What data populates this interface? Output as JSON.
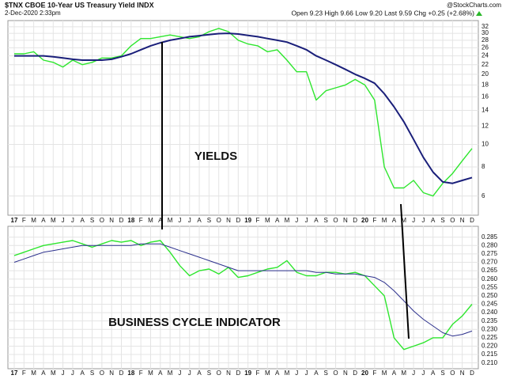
{
  "chart_data": [
    {
      "type": "line",
      "title": "$TNX CBOE 10-Year US Treasury Yield INDX",
      "subtitle": "2-Dec-2020 2:33pm",
      "quote": "Open 9.23 High 9.66 Low 9.20 Last 9.59 Chg +0.25 (+2.68%)",
      "source": "@StockCharts.com",
      "annotations": [
        "YIELDS"
      ],
      "log_scale": true,
      "grid": true,
      "categories": [
        "17",
        "F",
        "M",
        "A",
        "M",
        "J",
        "J",
        "A",
        "S",
        "O",
        "N",
        "D",
        "18",
        "F",
        "M",
        "A",
        "M",
        "J",
        "J",
        "A",
        "S",
        "O",
        "N",
        "D",
        "19",
        "F",
        "M",
        "A",
        "M",
        "J",
        "J",
        "A",
        "S",
        "O",
        "N",
        "D",
        "20",
        "F",
        "M",
        "A",
        "M",
        "J",
        "J",
        "A",
        "S",
        "O",
        "N",
        "D"
      ],
      "series": [
        {
          "color": "#2ee62e",
          "values": [
            24.5,
            24.5,
            25,
            23,
            22.5,
            21.5,
            23,
            22,
            22.5,
            23.5,
            23.5,
            24,
            26.5,
            28.5,
            28.5,
            29,
            29.5,
            29,
            28.5,
            29,
            30.5,
            31.5,
            30.5,
            28,
            27,
            26.5,
            25,
            25.5,
            23,
            20.5,
            20.5,
            15.5,
            17,
            17.5,
            18,
            19,
            18,
            15.5,
            8,
            6.5,
            6.5,
            7,
            6.2,
            6,
            6.8,
            7.5,
            8.5,
            9.6
          ]
        },
        {
          "color": "#1a1f7a",
          "values": [
            24,
            24,
            24,
            24,
            23.8,
            23.5,
            23.2,
            23,
            23,
            23,
            23.2,
            23.8,
            24.5,
            25.5,
            26.5,
            27.3,
            28,
            28.5,
            29,
            29.3,
            29.6,
            29.9,
            30,
            29.8,
            29.4,
            29,
            28.5,
            28,
            27.5,
            26.5,
            25.5,
            24,
            23,
            22,
            21,
            20,
            19.2,
            18.3,
            16.5,
            14.5,
            12.5,
            10.5,
            8.8,
            7.6,
            6.9,
            6.8,
            7,
            7.2
          ]
        }
      ],
      "ylim": [
        5,
        33.5
      ],
      "yticks": [
        6,
        8,
        10,
        12,
        14,
        16,
        18,
        20,
        22,
        24,
        26,
        28,
        30,
        32
      ]
    },
    {
      "type": "line",
      "annotations": [
        "BUSINESS CYCLE INDICATOR"
      ],
      "log_scale": false,
      "grid": true,
      "categories": [
        "17",
        "F",
        "M",
        "A",
        "M",
        "J",
        "J",
        "A",
        "S",
        "O",
        "N",
        "D",
        "18",
        "F",
        "M",
        "A",
        "M",
        "J",
        "J",
        "A",
        "S",
        "O",
        "N",
        "D",
        "19",
        "F",
        "M",
        "A",
        "M",
        "J",
        "J",
        "A",
        "S",
        "O",
        "N",
        "D",
        "20",
        "F",
        "M",
        "A",
        "M",
        "J",
        "J",
        "A",
        "S",
        "O",
        "N",
        "D"
      ],
      "series": [
        {
          "color": "#2ee62e",
          "values": [
            0.274,
            0.276,
            0.278,
            0.28,
            0.281,
            0.282,
            0.283,
            0.281,
            0.279,
            0.281,
            0.283,
            0.282,
            0.283,
            0.28,
            0.282,
            0.283,
            0.276,
            0.268,
            0.262,
            0.265,
            0.266,
            0.263,
            0.267,
            0.261,
            0.262,
            0.264,
            0.266,
            0.267,
            0.271,
            0.264,
            0.262,
            0.262,
            0.264,
            0.264,
            0.263,
            0.264,
            0.262,
            0.256,
            0.25,
            0.225,
            0.218,
            0.22,
            0.222,
            0.225,
            0.225,
            0.233,
            0.238,
            0.245
          ]
        },
        {
          "color": "#2b2f8c",
          "values": [
            0.27,
            0.272,
            0.274,
            0.276,
            0.277,
            0.278,
            0.279,
            0.28,
            0.28,
            0.28,
            0.28,
            0.28,
            0.28,
            0.281,
            0.281,
            0.281,
            0.279,
            0.277,
            0.275,
            0.273,
            0.271,
            0.269,
            0.267,
            0.265,
            0.265,
            0.265,
            0.265,
            0.265,
            0.265,
            0.265,
            0.265,
            0.264,
            0.264,
            0.263,
            0.263,
            0.263,
            0.262,
            0.261,
            0.258,
            0.253,
            0.247,
            0.241,
            0.236,
            0.232,
            0.228,
            0.226,
            0.227,
            0.229
          ]
        }
      ],
      "ylim": [
        0.207,
        0.291
      ],
      "yticks": [
        {
          "value": 0.21,
          "label": "0.210"
        },
        {
          "value": 0.215,
          "label": "0.215"
        },
        {
          "value": 0.22,
          "label": "0.220"
        },
        {
          "value": 0.225,
          "label": "0.225"
        },
        {
          "value": 0.23,
          "label": "0.230"
        },
        {
          "value": 0.235,
          "label": "0.235"
        },
        {
          "value": 0.24,
          "label": "0.240"
        },
        {
          "value": 0.245,
          "label": "0.245"
        },
        {
          "value": 0.25,
          "label": "0.250"
        },
        {
          "value": 0.255,
          "label": "0.255"
        },
        {
          "value": 0.26,
          "label": "0.260"
        },
        {
          "value": 0.265,
          "label": "0.265"
        },
        {
          "value": 0.27,
          "label": "0.270"
        },
        {
          "value": 0.275,
          "label": "0.275"
        },
        {
          "value": 0.28,
          "label": "0.280"
        },
        {
          "value": 0.285,
          "label": "0.285"
        }
      ]
    }
  ]
}
